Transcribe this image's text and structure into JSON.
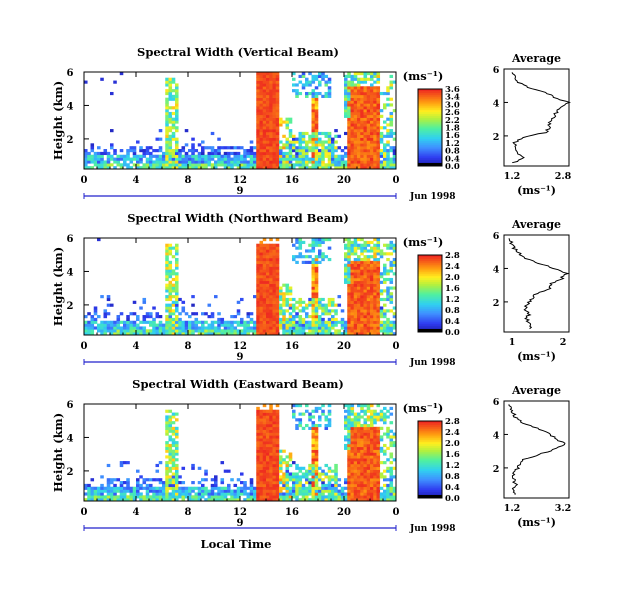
{
  "chart_data": [
    {
      "type": "heatmap",
      "title": "Spectral Width (Vertical Beam)",
      "ylabel": "Height (km)",
      "xlabel": "",
      "x_ticks": [
        "0",
        "4",
        "8",
        "12",
        "16",
        "20",
        "0"
      ],
      "y_ticks": [
        "6",
        "4",
        "2"
      ],
      "date_marker": "9",
      "date_label": "Jun 1998",
      "xlim": [
        0,
        24
      ],
      "ylim": [
        0.2,
        6
      ],
      "colorbar": {
        "label": "(ms⁻¹)",
        "ticks": [
          "3.6",
          "3.4",
          "3.0",
          "2.6",
          "2.2",
          "1.8",
          "1.6",
          "1.2",
          "0.8",
          "0.4",
          "0.0"
        ],
        "range": [
          0,
          3.6
        ]
      },
      "average": {
        "title": "Average",
        "xlabel": "(ms⁻¹)",
        "x_ticks": [
          "1.2",
          "2.8"
        ],
        "y_ticks": [
          "6",
          "4",
          "2"
        ],
        "xlim": [
          1.2,
          2.8
        ],
        "ylim": [
          0.2,
          6
        ],
        "height": [
          0.4,
          0.7,
          1.0,
          1.3,
          1.6,
          1.9,
          2.2,
          2.5,
          2.8,
          3.1,
          3.4,
          3.7,
          4.0,
          4.3,
          4.6,
          4.9,
          5.2,
          5.5,
          5.8
        ],
        "values": [
          1.45,
          1.65,
          1.55,
          1.5,
          1.45,
          1.7,
          2.2,
          2.35,
          2.3,
          2.4,
          2.5,
          2.6,
          2.8,
          2.45,
          2.2,
          1.8,
          1.55,
          1.45,
          1.4
        ]
      }
    },
    {
      "type": "heatmap",
      "title": "Spectral Width (Northward Beam)",
      "ylabel": "Height (km)",
      "xlabel": "",
      "x_ticks": [
        "0",
        "4",
        "8",
        "12",
        "16",
        "20",
        "0"
      ],
      "y_ticks": [
        "6",
        "4",
        "2"
      ],
      "date_marker": "9",
      "date_label": "Jun 1998",
      "xlim": [
        0,
        24
      ],
      "ylim": [
        0.2,
        6
      ],
      "colorbar": {
        "label": "(ms⁻¹)",
        "ticks": [
          "2.8",
          "2.4",
          "2.0",
          "1.6",
          "1.2",
          "0.8",
          "0.4",
          "0.0"
        ],
        "range": [
          0,
          2.8
        ]
      },
      "average": {
        "title": "Average",
        "xlabel": "(ms⁻¹)",
        "x_ticks": [
          "1",
          "2"
        ],
        "y_ticks": [
          "6",
          "4",
          "2"
        ],
        "xlim": [
          0.8,
          2.1
        ],
        "ylim": [
          0.2,
          6
        ],
        "height": [
          0.4,
          0.7,
          1.0,
          1.3,
          1.6,
          1.9,
          2.2,
          2.5,
          2.8,
          3.1,
          3.4,
          3.7,
          4.0,
          4.3,
          4.6,
          4.9,
          5.2,
          5.5,
          5.8
        ],
        "values": [
          1.35,
          1.3,
          1.25,
          1.3,
          1.2,
          1.3,
          1.35,
          1.45,
          1.7,
          1.75,
          1.95,
          2.05,
          1.8,
          1.5,
          1.25,
          1.1,
          1.0,
          0.95,
          0.9
        ]
      }
    },
    {
      "type": "heatmap",
      "title": "Spectral Width (Eastward Beam)",
      "ylabel": "Height (km)",
      "xlabel": "Local Time",
      "x_ticks": [
        "0",
        "4",
        "8",
        "12",
        "16",
        "20",
        "0"
      ],
      "y_ticks": [
        "6",
        "4",
        "2"
      ],
      "date_marker": "9",
      "date_label": "Jun 1998",
      "xlim": [
        0,
        24
      ],
      "ylim": [
        0.2,
        6
      ],
      "colorbar": {
        "label": "(ms⁻¹)",
        "ticks": [
          "2.8",
          "2.4",
          "2.0",
          "1.6",
          "1.2",
          "0.8",
          "0.4",
          "0.0"
        ],
        "range": [
          0,
          2.8
        ]
      },
      "average": {
        "title": "Average",
        "xlabel": "(ms⁻¹)",
        "x_ticks": [
          "1.2",
          "3.2"
        ],
        "y_ticks": [
          "6",
          "4",
          "2"
        ],
        "xlim": [
          1.2,
          3.2
        ],
        "ylim": [
          0.2,
          6
        ],
        "height": [
          0.4,
          0.7,
          1.0,
          1.3,
          1.6,
          1.9,
          2.2,
          2.5,
          2.8,
          3.1,
          3.4,
          3.7,
          4.0,
          4.3,
          4.6,
          4.9,
          5.2,
          5.5,
          5.8
        ],
        "values": [
          1.6,
          1.45,
          1.55,
          1.5,
          1.5,
          1.6,
          1.65,
          1.8,
          2.3,
          2.7,
          3.1,
          2.85,
          2.6,
          2.3,
          1.9,
          1.6,
          1.5,
          1.4,
          1.35
        ]
      }
    }
  ]
}
